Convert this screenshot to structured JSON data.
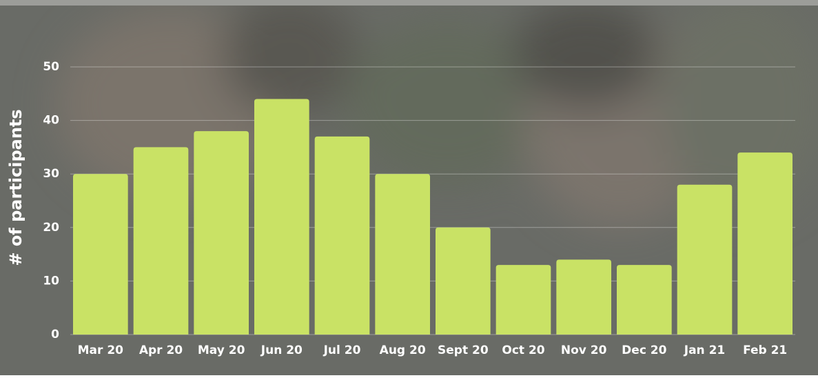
{
  "chart_data": {
    "type": "bar",
    "y_label": "# of participants",
    "categories": [
      "Mar 20",
      "Apr 20",
      "May 20",
      "Jun 20",
      "Jul 20",
      "Aug 20",
      "Sept 20",
      "Oct 20",
      "Nov 20",
      "Dec 20",
      "Jan 21",
      "Feb 21"
    ],
    "values": [
      30,
      35,
      38,
      44,
      37,
      30,
      20,
      13,
      14,
      13,
      28,
      34
    ],
    "color": "#c9e265",
    "ylim": [
      0,
      50
    ],
    "yticks": [
      0,
      10,
      20,
      30,
      40,
      50
    ],
    "grid": true
  }
}
